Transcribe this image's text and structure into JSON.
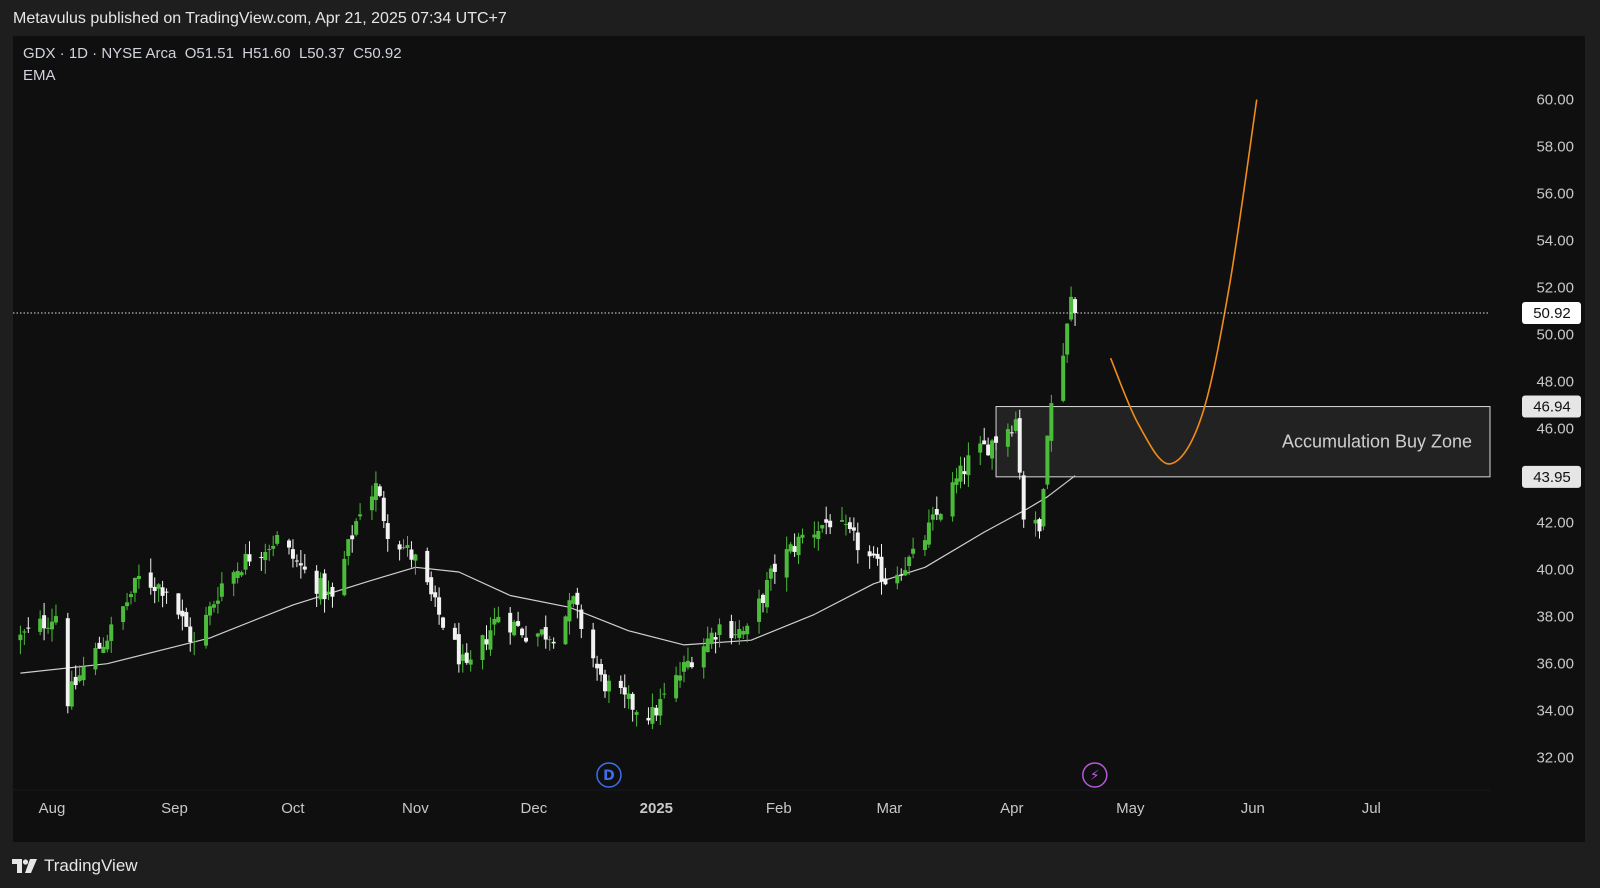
{
  "header": {
    "published_text": "Metavulus published on TradingView.com, Apr 21, 2025 07:34 UTC+7"
  },
  "legend": {
    "symbol_line": "GDX · 1D · NYSE Arca  O51.51  H51.60  L50.37  C50.92",
    "indicator": "EMA"
  },
  "footer": {
    "brand": "TradingView"
  },
  "colors": {
    "background": "#0f0f0f",
    "frame": "#1e1e1e",
    "up_candle": "#4cbb3b",
    "down_candle": "#f2f2f2",
    "ema_line": "#cfcfcf",
    "projection": "#f08c1a",
    "zone_fill": "#262626",
    "d_badge": "#3d6ef0",
    "bolt_badge": "#b35ad9"
  },
  "chart_data": {
    "type": "candlestick",
    "symbol": "GDX",
    "interval": "1D",
    "exchange": "NYSE Arca",
    "y_axis": {
      "side": "right",
      "ylim": [
        30.5,
        61.3
      ],
      "ticks": [
        "32.00",
        "34.00",
        "36.00",
        "38.00",
        "40.00",
        "42.00",
        "44.00",
        "46.00",
        "48.00",
        "50.00",
        "52.00",
        "54.00",
        "56.00",
        "58.00",
        "60.00"
      ]
    },
    "x_axis": {
      "labels": [
        {
          "label": "Aug",
          "date": "2024-08-01"
        },
        {
          "label": "Sep",
          "date": "2024-09-01"
        },
        {
          "label": "Oct",
          "date": "2024-10-01"
        },
        {
          "label": "Nov",
          "date": "2024-11-01"
        },
        {
          "label": "Dec",
          "date": "2024-12-01"
        },
        {
          "label": "2025",
          "date": "2025-01-01",
          "bold": true
        },
        {
          "label": "Feb",
          "date": "2025-02-01"
        },
        {
          "label": "Mar",
          "date": "2025-03-01"
        },
        {
          "label": "Apr",
          "date": "2025-04-01"
        },
        {
          "label": "May",
          "date": "2025-05-01"
        },
        {
          "label": "Jun",
          "date": "2025-06-01"
        },
        {
          "label": "Jul",
          "date": "2025-07-01"
        }
      ]
    },
    "last_price": {
      "value": 50.92,
      "label": "50.92"
    },
    "zone": {
      "label": "Accumulation Buy Zone",
      "top": 46.94,
      "bottom": 43.95,
      "top_label": "46.94",
      "bottom_label": "43.95",
      "start": "2025-03-28"
    },
    "anchors": [
      [
        "2024-07-24",
        37.1
      ],
      [
        "2024-08-02",
        38.1
      ],
      [
        "2024-08-05",
        34.5
      ],
      [
        "2024-08-09",
        35.8
      ],
      [
        "2024-08-16",
        37.4
      ],
      [
        "2024-08-23",
        39.6
      ],
      [
        "2024-08-30",
        39.2
      ],
      [
        "2024-09-06",
        36.8
      ],
      [
        "2024-09-13",
        39.4
      ],
      [
        "2024-09-20",
        40.6
      ],
      [
        "2024-09-27",
        41.3
      ],
      [
        "2024-10-04",
        39.9
      ],
      [
        "2024-10-11",
        38.7
      ],
      [
        "2024-10-18",
        42.6
      ],
      [
        "2024-10-22",
        43.5
      ],
      [
        "2024-10-25",
        41.7
      ],
      [
        "2024-11-01",
        40.4
      ],
      [
        "2024-11-06",
        38.4
      ],
      [
        "2024-11-11",
        36.7
      ],
      [
        "2024-11-14",
        35.6
      ],
      [
        "2024-11-22",
        38.1
      ],
      [
        "2024-11-29",
        37.3
      ],
      [
        "2024-12-06",
        37.3
      ],
      [
        "2024-12-11",
        38.6
      ],
      [
        "2024-12-18",
        35.3
      ],
      [
        "2024-12-24",
        34.4
      ],
      [
        "2024-12-31",
        33.8
      ],
      [
        "2025-01-10",
        36.3
      ],
      [
        "2025-01-17",
        37.6
      ],
      [
        "2025-01-24",
        37.3
      ],
      [
        "2025-01-31",
        40.1
      ],
      [
        "2025-02-07",
        41.4
      ],
      [
        "2025-02-14",
        42.1
      ],
      [
        "2025-02-21",
        41.1
      ],
      [
        "2025-02-28",
        39.6
      ],
      [
        "2025-03-07",
        40.5
      ],
      [
        "2025-03-14",
        42.6
      ],
      [
        "2025-03-21",
        44.6
      ],
      [
        "2025-03-28",
        45.6
      ],
      [
        "2025-04-02",
        46.4
      ],
      [
        "2025-04-04",
        42.3
      ],
      [
        "2025-04-08",
        41.6
      ],
      [
        "2025-04-10",
        46.1
      ],
      [
        "2025-04-14",
        49.4
      ],
      [
        "2025-04-16",
        51.6
      ],
      [
        "2025-04-17",
        50.92
      ]
    ],
    "ema": [
      [
        "2024-07-24",
        35.6
      ],
      [
        "2024-08-15",
        36.0
      ],
      [
        "2024-09-10",
        37.1
      ],
      [
        "2024-10-01",
        38.5
      ],
      [
        "2024-10-20",
        39.5
      ],
      [
        "2024-11-01",
        40.1
      ],
      [
        "2024-11-12",
        39.9
      ],
      [
        "2024-11-25",
        38.9
      ],
      [
        "2024-12-10",
        38.4
      ],
      [
        "2024-12-25",
        37.4
      ],
      [
        "2025-01-08",
        36.8
      ],
      [
        "2025-01-25",
        37.0
      ],
      [
        "2025-02-10",
        38.1
      ],
      [
        "2025-02-25",
        39.4
      ],
      [
        "2025-03-10",
        40.1
      ],
      [
        "2025-03-25",
        41.6
      ],
      [
        "2025-04-05",
        42.6
      ],
      [
        "2025-04-10",
        43.1
      ],
      [
        "2025-04-17",
        44.0
      ]
    ],
    "projection": [
      [
        "2025-04-26",
        49.0
      ],
      [
        "2025-05-03",
        46.2
      ],
      [
        "2025-05-11",
        44.5
      ],
      [
        "2025-05-19",
        46.5
      ],
      [
        "2025-05-26",
        52.0
      ],
      [
        "2025-06-02",
        60.0
      ]
    ],
    "event_markers": [
      {
        "date": "2024-12-20",
        "label": "D",
        "type": "dividend"
      },
      {
        "date": "2025-04-22",
        "label": "⚡",
        "type": "earnings"
      }
    ]
  }
}
